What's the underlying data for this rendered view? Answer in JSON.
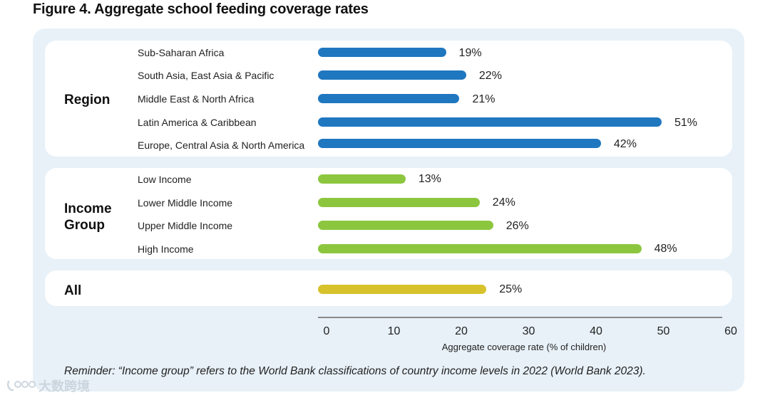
{
  "title": "Figure 4. Aggregate school feeding coverage rates",
  "chart_data": {
    "type": "bar",
    "orientation": "horizontal",
    "title": "Figure 4. Aggregate school feeding coverage rates",
    "xlabel": "Aggregate coverage rate (% of children)",
    "ylabel": "",
    "xlim": [
      0,
      60
    ],
    "xticks": [
      "0",
      "10",
      "20",
      "30",
      "40",
      "50",
      "60"
    ],
    "groups": [
      {
        "name": "Region",
        "color": "#1f77c0",
        "items": [
          {
            "label": "Sub-Saharan Africa",
            "value": 19,
            "value_label": "19%"
          },
          {
            "label": "South Asia, East Asia & Pacific",
            "value": 22,
            "value_label": "22%"
          },
          {
            "label": "Middle East & North Africa",
            "value": 21,
            "value_label": "21%"
          },
          {
            "label": "Latin America & Caribbean",
            "value": 51,
            "value_label": "51%"
          },
          {
            "label": "Europe, Central Asia & North America",
            "value": 42,
            "value_label": "42%"
          }
        ]
      },
      {
        "name_line1": "Income",
        "name_line2": "Group",
        "color": "#8cc63f",
        "items": [
          {
            "label": "Low Income",
            "value": 13,
            "value_label": "13%"
          },
          {
            "label": "Lower Middle Income",
            "value": 24,
            "value_label": "24%"
          },
          {
            "label": "Upper Middle Income",
            "value": 26,
            "value_label": "26%"
          },
          {
            "label": "High Income",
            "value": 48,
            "value_label": "48%"
          }
        ]
      },
      {
        "name": "All",
        "color": "#d7c22c",
        "items": [
          {
            "label": "",
            "value": 25,
            "value_label": "25%"
          }
        ]
      }
    ]
  },
  "reminder": "Reminder: “Income group” refers to the World Bank classifications of country income levels in 2022 (World Bank 2023).",
  "watermark": "大数跨境"
}
